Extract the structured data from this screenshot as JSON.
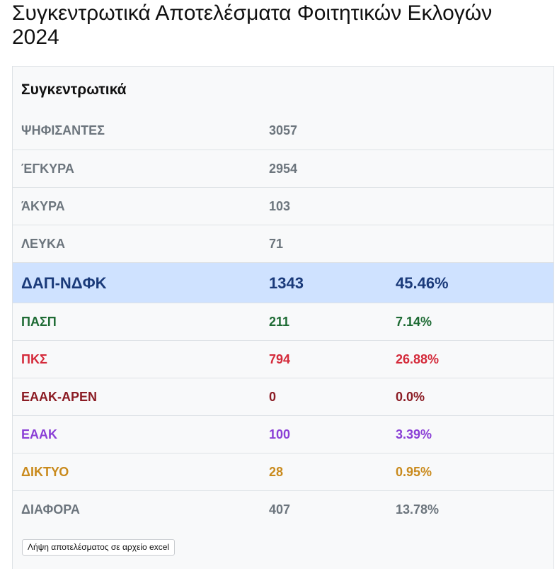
{
  "page": {
    "title": "Συγκεντρωτικά Αποτελέσματα Φοιτητικών Εκλογών 2024"
  },
  "summary": {
    "heading": "Συγκεντρωτικά",
    "rows": [
      {
        "label": "ΨΗΦΙΣΑΝΤΕΣ",
        "value": "3057",
        "percent": "",
        "color": "#6c757d"
      },
      {
        "label": "ΈΓΚΥΡΑ",
        "value": "2954",
        "percent": "",
        "color": "#6c757d"
      },
      {
        "label": "ΆΚΥΡΑ",
        "value": "103",
        "percent": "",
        "color": "#6c757d"
      },
      {
        "label": "ΛΕΥΚΑ",
        "value": "71",
        "percent": "",
        "color": "#6c757d"
      }
    ]
  },
  "parties": [
    {
      "label": "ΔΑΠ-ΝΔΦΚ",
      "votes": "1343",
      "percent": "45.46%",
      "color": "#1a3a7a",
      "leading": true
    },
    {
      "label": "ΠΑΣΠ",
      "votes": "211",
      "percent": "7.14%",
      "color": "#1e6b34",
      "leading": false
    },
    {
      "label": "ΠΚΣ",
      "votes": "794",
      "percent": "26.88%",
      "color": "#d42a3a",
      "leading": false
    },
    {
      "label": "ΕΑΑΚ-ΑΡΕΝ",
      "votes": "0",
      "percent": "0.0%",
      "color": "#8b1c24",
      "leading": false
    },
    {
      "label": "ΕΑΑΚ",
      "votes": "100",
      "percent": "3.39%",
      "color": "#8a3fd6",
      "leading": false
    },
    {
      "label": "ΔΙΚΤΥΟ",
      "votes": "28",
      "percent": "0.95%",
      "color": "#c98a1c",
      "leading": false
    },
    {
      "label": "ΔΙΑΦΟΡΑ",
      "votes": "407",
      "percent": "13.78%",
      "color": "#6c757d",
      "leading": false
    }
  ],
  "actions": {
    "download_label": "Λήψη αποτελέσματος σε αρχείο excel"
  }
}
